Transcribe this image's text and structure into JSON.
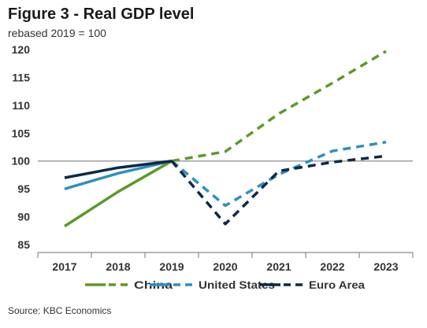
{
  "chart_data": {
    "type": "line",
    "title": "Figure 3 - Real GDP level",
    "subtitle": "rebased 2019 = 100",
    "xlabel": "",
    "ylabel": "",
    "categories": [
      "2017",
      "2018",
      "2019",
      "2020",
      "2021",
      "2022",
      "2023"
    ],
    "ylim": [
      85,
      120
    ],
    "yticks": [
      85,
      90,
      95,
      100,
      105,
      110,
      115,
      120
    ],
    "reference_line": 100,
    "legend_position": "bottom",
    "grid": false,
    "solid_through": "2019",
    "dashed_from": "2019",
    "series": [
      {
        "name": "China",
        "color": "#5b9a2a",
        "values": [
          88.3,
          94.5,
          100.0,
          101.7,
          108.5,
          114.0,
          119.7
        ]
      },
      {
        "name": "United States",
        "color": "#2f8fc0",
        "values": [
          95.0,
          97.8,
          100.0,
          92.0,
          97.6,
          101.8,
          103.4
        ]
      },
      {
        "name": "Euro Area",
        "color": "#0d2849",
        "values": [
          97.0,
          98.8,
          100.0,
          88.7,
          98.2,
          99.8,
          100.9
        ]
      }
    ],
    "source": "Source: KBC Economics"
  }
}
